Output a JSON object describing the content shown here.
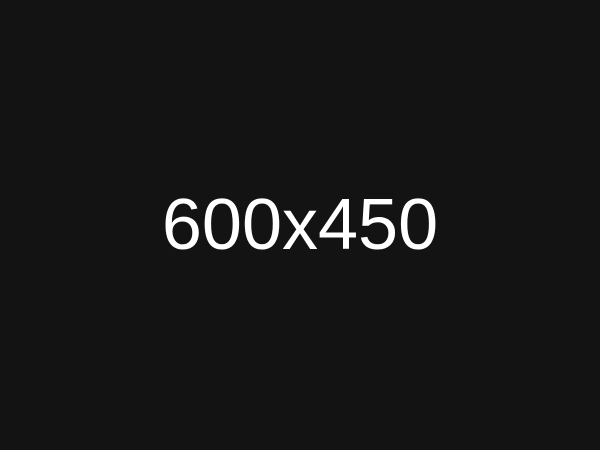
{
  "placeholder": {
    "label": "600x450"
  },
  "colors": {
    "background": "#131313",
    "text": "#ffffff"
  }
}
